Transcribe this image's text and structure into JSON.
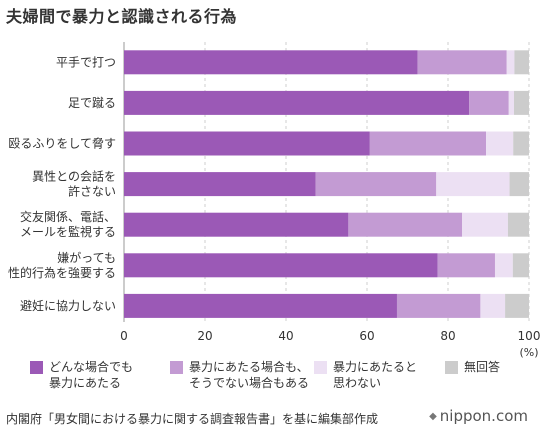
{
  "title": "夫婦間で暴力と認識される行為",
  "chart_data": {
    "type": "bar",
    "orientation": "horizontal",
    "stacked": true,
    "categories": [
      "平手で打つ",
      "足で蹴る",
      "殴るふりをして脅す",
      "異性との会話を\n許さない",
      "交友関係、電話、\nメールを監視する",
      "嫌がっても\n性的行為を強要する",
      "避妊に協力しない"
    ],
    "series": [
      {
        "name": "どんな場合でも\n暴力にあたる",
        "color": "#9b59b6",
        "values": [
          72.5,
          85.2,
          60.7,
          47.3,
          55.4,
          77.4,
          67.4
        ]
      },
      {
        "name": "暴力にあたる場合も、\nそうでない場合もある",
        "color": "#c39bd3",
        "values": [
          22.0,
          9.8,
          28.7,
          29.8,
          28.1,
          14.2,
          20.6
        ]
      },
      {
        "name": "暴力にあたると\n思わない",
        "color": "#ece0f3",
        "values": [
          1.9,
          1.3,
          6.7,
          18.1,
          11.3,
          4.4,
          6.1
        ]
      },
      {
        "name": "無回答",
        "color": "#cccccc",
        "values": [
          3.6,
          3.7,
          3.9,
          4.8,
          5.2,
          4.0,
          5.9
        ]
      }
    ],
    "xlim": [
      0,
      100
    ],
    "xticks": [
      "0",
      "20",
      "40",
      "60",
      "80",
      "100"
    ],
    "xunit": "(%)",
    "grid": "vertical dashed",
    "legend": "bottom"
  },
  "source": "内閣府「男女間における暴力に関する調査報告書」を基に編集部作成",
  "brand": {
    "mark": "◆",
    "text": "nippon.com"
  }
}
